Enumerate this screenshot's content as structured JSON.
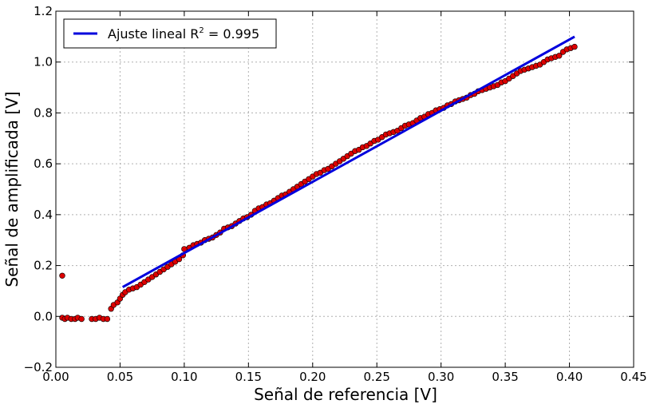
{
  "chart_data": {
    "type": "scatter",
    "xlabel": "Señal de referencia [V]",
    "ylabel": "Señal de amplificada [V]",
    "xlim": [
      0.0,
      0.45
    ],
    "ylim": [
      -0.2,
      1.2
    ],
    "xticks": [
      "0.00",
      "0.05",
      "0.10",
      "0.15",
      "0.20",
      "0.25",
      "0.30",
      "0.35",
      "0.40",
      "0.45"
    ],
    "yticks": [
      "−0.2",
      "0.0",
      "0.2",
      "0.4",
      "0.6",
      "0.8",
      "1.0",
      "1.2"
    ],
    "grid": true,
    "legend": {
      "placement": "top-left",
      "label_prefix": "Ajuste lineal R",
      "label_superscript": "2",
      "label_suffix": " = 0.995"
    },
    "series": [
      {
        "kind": "scatter",
        "color": "#dd0000",
        "edge_color": "#000000",
        "points": [
          [
            0.005,
            0.16
          ],
          [
            0.005,
            -0.005
          ],
          [
            0.007,
            -0.01
          ],
          [
            0.009,
            -0.005
          ],
          [
            0.012,
            -0.01
          ],
          [
            0.015,
            -0.01
          ],
          [
            0.017,
            -0.005
          ],
          [
            0.02,
            -0.01
          ],
          [
            0.028,
            -0.01
          ],
          [
            0.031,
            -0.01
          ],
          [
            0.034,
            -0.005
          ],
          [
            0.037,
            -0.01
          ],
          [
            0.04,
            -0.01
          ],
          [
            0.043,
            0.03
          ],
          [
            0.045,
            0.045
          ],
          [
            0.048,
            0.055
          ],
          [
            0.05,
            0.07
          ],
          [
            0.052,
            0.085
          ],
          [
            0.054,
            0.095
          ],
          [
            0.057,
            0.105
          ],
          [
            0.06,
            0.11
          ],
          [
            0.063,
            0.115
          ],
          [
            0.066,
            0.125
          ],
          [
            0.069,
            0.135
          ],
          [
            0.072,
            0.145
          ],
          [
            0.075,
            0.155
          ],
          [
            0.078,
            0.165
          ],
          [
            0.081,
            0.175
          ],
          [
            0.084,
            0.185
          ],
          [
            0.087,
            0.195
          ],
          [
            0.09,
            0.205
          ],
          [
            0.093,
            0.215
          ],
          [
            0.096,
            0.225
          ],
          [
            0.099,
            0.24
          ],
          [
            0.1,
            0.265
          ],
          [
            0.104,
            0.27
          ],
          [
            0.107,
            0.28
          ],
          [
            0.11,
            0.285
          ],
          [
            0.113,
            0.29
          ],
          [
            0.116,
            0.3
          ],
          [
            0.119,
            0.305
          ],
          [
            0.122,
            0.31
          ],
          [
            0.125,
            0.32
          ],
          [
            0.128,
            0.33
          ],
          [
            0.131,
            0.345
          ],
          [
            0.134,
            0.35
          ],
          [
            0.137,
            0.355
          ],
          [
            0.14,
            0.365
          ],
          [
            0.143,
            0.375
          ],
          [
            0.146,
            0.385
          ],
          [
            0.149,
            0.39
          ],
          [
            0.152,
            0.4
          ],
          [
            0.155,
            0.415
          ],
          [
            0.158,
            0.425
          ],
          [
            0.161,
            0.43
          ],
          [
            0.164,
            0.44
          ],
          [
            0.167,
            0.445
          ],
          [
            0.17,
            0.455
          ],
          [
            0.173,
            0.465
          ],
          [
            0.176,
            0.475
          ],
          [
            0.179,
            0.48
          ],
          [
            0.182,
            0.49
          ],
          [
            0.185,
            0.5
          ],
          [
            0.188,
            0.51
          ],
          [
            0.191,
            0.52
          ],
          [
            0.194,
            0.53
          ],
          [
            0.197,
            0.54
          ],
          [
            0.2,
            0.55
          ],
          [
            0.203,
            0.56
          ],
          [
            0.206,
            0.565
          ],
          [
            0.209,
            0.575
          ],
          [
            0.212,
            0.58
          ],
          [
            0.215,
            0.59
          ],
          [
            0.218,
            0.6
          ],
          [
            0.221,
            0.61
          ],
          [
            0.224,
            0.62
          ],
          [
            0.227,
            0.63
          ],
          [
            0.23,
            0.64
          ],
          [
            0.233,
            0.65
          ],
          [
            0.236,
            0.655
          ],
          [
            0.239,
            0.665
          ],
          [
            0.242,
            0.67
          ],
          [
            0.245,
            0.68
          ],
          [
            0.248,
            0.69
          ],
          [
            0.251,
            0.695
          ],
          [
            0.254,
            0.705
          ],
          [
            0.257,
            0.715
          ],
          [
            0.26,
            0.72
          ],
          [
            0.263,
            0.725
          ],
          [
            0.266,
            0.73
          ],
          [
            0.269,
            0.74
          ],
          [
            0.272,
            0.75
          ],
          [
            0.275,
            0.755
          ],
          [
            0.278,
            0.76
          ],
          [
            0.281,
            0.77
          ],
          [
            0.284,
            0.78
          ],
          [
            0.287,
            0.785
          ],
          [
            0.29,
            0.795
          ],
          [
            0.293,
            0.8
          ],
          [
            0.296,
            0.81
          ],
          [
            0.299,
            0.815
          ],
          [
            0.302,
            0.82
          ],
          [
            0.305,
            0.83
          ],
          [
            0.308,
            0.835
          ],
          [
            0.311,
            0.845
          ],
          [
            0.314,
            0.85
          ],
          [
            0.317,
            0.855
          ],
          [
            0.32,
            0.86
          ],
          [
            0.323,
            0.87
          ],
          [
            0.326,
            0.875
          ],
          [
            0.329,
            0.885
          ],
          [
            0.332,
            0.89
          ],
          [
            0.335,
            0.895
          ],
          [
            0.338,
            0.9
          ],
          [
            0.341,
            0.905
          ],
          [
            0.344,
            0.91
          ],
          [
            0.347,
            0.92
          ],
          [
            0.35,
            0.925
          ],
          [
            0.353,
            0.935
          ],
          [
            0.356,
            0.945
          ],
          [
            0.359,
            0.955
          ],
          [
            0.362,
            0.965
          ],
          [
            0.365,
            0.97
          ],
          [
            0.368,
            0.975
          ],
          [
            0.371,
            0.98
          ],
          [
            0.374,
            0.985
          ],
          [
            0.377,
            0.99
          ],
          [
            0.38,
            1.0
          ],
          [
            0.383,
            1.01
          ],
          [
            0.386,
            1.015
          ],
          [
            0.389,
            1.02
          ],
          [
            0.392,
            1.025
          ],
          [
            0.395,
            1.04
          ],
          [
            0.398,
            1.05
          ],
          [
            0.401,
            1.055
          ],
          [
            0.404,
            1.06
          ]
        ]
      },
      {
        "kind": "line",
        "color": "#0000dd",
        "points": [
          [
            0.052,
            0.115
          ],
          [
            0.404,
            1.1
          ]
        ]
      }
    ]
  }
}
